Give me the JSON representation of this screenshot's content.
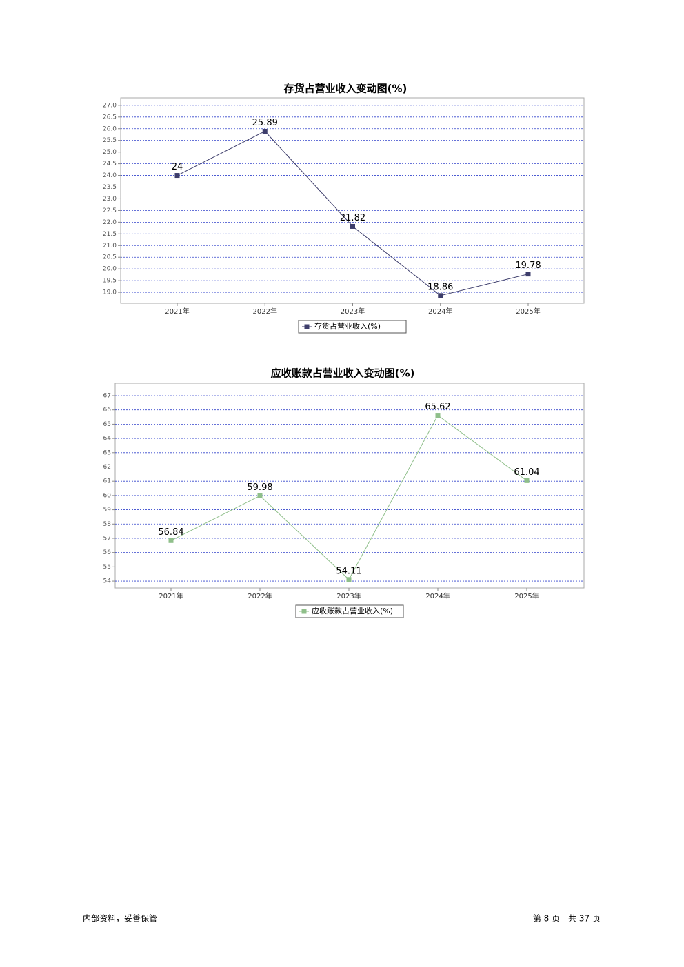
{
  "chart_data": [
    {
      "type": "line",
      "title": "存货占营业收入变动图(%)",
      "categories": [
        "2021年",
        "2022年",
        "2023年",
        "2024年",
        "2025年"
      ],
      "series": [
        {
          "name": "存货占营业收入(%)",
          "color": "#3d3d6b",
          "values": [
            24,
            25.89,
            21.82,
            18.86,
            19.78
          ]
        }
      ],
      "ylim": [
        18.53,
        27.32
      ],
      "yticks": [
        {
          "value": 19,
          "label": "19.0"
        },
        {
          "value": 19.5,
          "label": "19.5"
        },
        {
          "value": 20,
          "label": "20.0"
        },
        {
          "value": 20.5,
          "label": "20.5"
        },
        {
          "value": 21,
          "label": "21.0"
        },
        {
          "value": 21.5,
          "label": "21.5"
        },
        {
          "value": 22,
          "label": "22.0"
        },
        {
          "value": 22.5,
          "label": "22.5"
        },
        {
          "value": 23,
          "label": "23.0"
        },
        {
          "value": 23.5,
          "label": "23.5"
        },
        {
          "value": 24,
          "label": "24.0"
        },
        {
          "value": 24.5,
          "label": "24.5"
        },
        {
          "value": 25,
          "label": "25.0"
        },
        {
          "value": 25.5,
          "label": "25.5"
        },
        {
          "value": 26,
          "label": "26.0"
        },
        {
          "value": 26.5,
          "label": "26.5"
        },
        {
          "value": 27,
          "label": "27.0"
        }
      ],
      "grid": true,
      "legend": "bottom"
    },
    {
      "type": "line",
      "title": "应收账款占营业收入变动图(%)",
      "categories": [
        "2021年",
        "2022年",
        "2023年",
        "2024年",
        "2025年"
      ],
      "series": [
        {
          "name": "应收账款占营业收入(%)",
          "color": "#8fbf8a",
          "values": [
            56.84,
            59.98,
            54.11,
            65.62,
            61.04
          ]
        }
      ],
      "ylim": [
        53.52,
        67.87
      ],
      "yticks": [
        54,
        55,
        56,
        57,
        58,
        59,
        60,
        61,
        62,
        63,
        64,
        65,
        66,
        67
      ],
      "grid": true,
      "legend": "bottom"
    }
  ],
  "footer": {
    "left": "内部资料，妥善保管",
    "right": "第 8 页　共 37 页"
  }
}
